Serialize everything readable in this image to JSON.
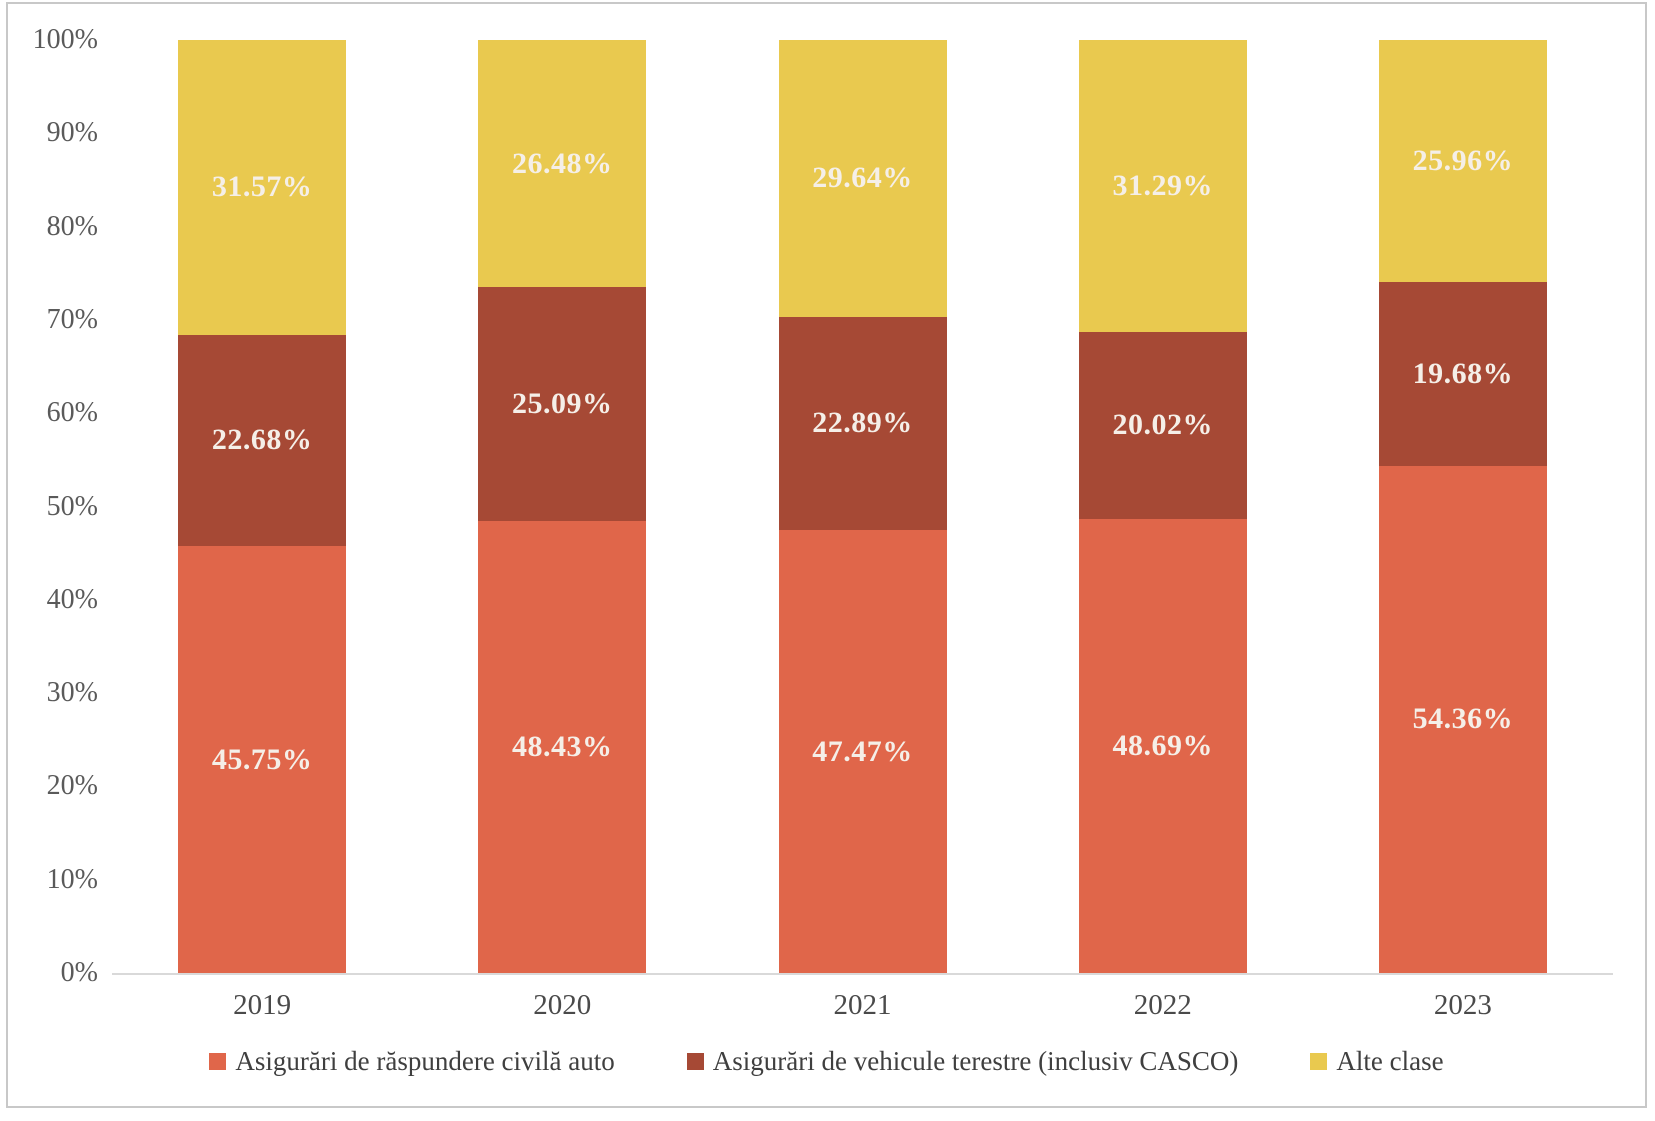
{
  "chart_data": {
    "type": "bar",
    "subtype": "stacked-100-percent",
    "title": "",
    "xlabel": "",
    "ylabel": "",
    "grid": false,
    "legend_position": "bottom",
    "categories": [
      "2019",
      "2020",
      "2021",
      "2022",
      "2023"
    ],
    "series": [
      {
        "name": "Asigurări de răspundere civilă auto",
        "color": "#e0664a",
        "values": [
          45.75,
          48.43,
          47.47,
          48.69,
          54.36
        ],
        "labels": [
          "45.75%",
          "48.43%",
          "47.47%",
          "48.69%",
          "54.36%"
        ]
      },
      {
        "name": "Asigurări de vehicule terestre (inclusiv CASCO)",
        "color": "#a64935",
        "values": [
          22.68,
          25.09,
          22.89,
          20.02,
          19.68
        ],
        "labels": [
          "22.68%",
          "25.09%",
          "22.89%",
          "20.02%",
          "19.68%"
        ]
      },
      {
        "name": "Alte clase",
        "color": "#e9c94f",
        "values": [
          31.57,
          26.48,
          29.64,
          31.29,
          25.96
        ],
        "labels": [
          "31.57%",
          "26.48%",
          "29.64%",
          "31.29%",
          "25.96%"
        ]
      }
    ],
    "y_axis": {
      "min": 0,
      "max": 100,
      "tick_labels": [
        "0%",
        "10%",
        "20%",
        "30%",
        "40%",
        "50%",
        "60%",
        "70%",
        "80%",
        "90%",
        "100%"
      ]
    }
  },
  "colors": {
    "frame_border": "#c8c8c8",
    "axis_line": "#d9d9d9",
    "tick_text": "#5a5a5a",
    "category_text": "#4a4a4a",
    "legend_text": "#3f3f3f",
    "data_label_text": "#f5efe8",
    "background": "#ffffff"
  }
}
